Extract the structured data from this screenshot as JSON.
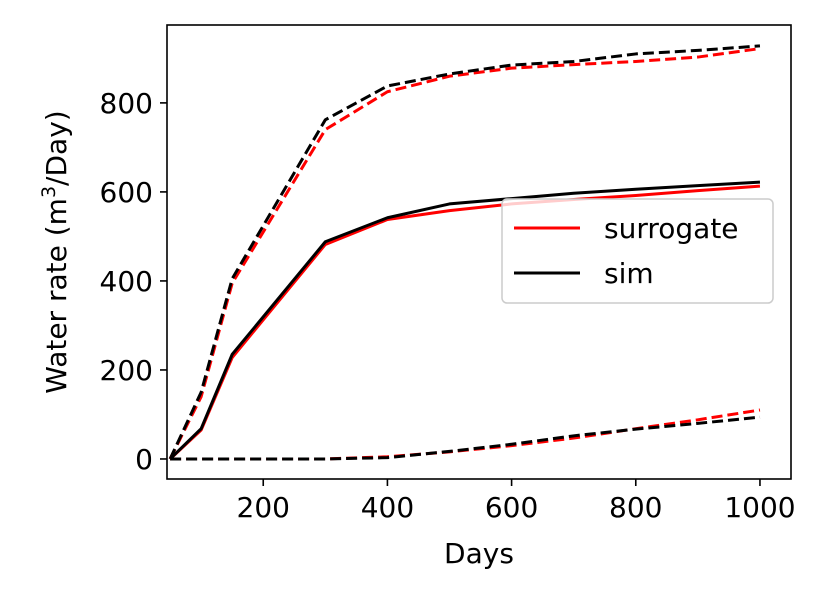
{
  "chart_data": {
    "type": "line",
    "title": "",
    "xlabel": "Days",
    "ylabel_parts": {
      "main": "Water rate (m",
      "sup": "3",
      "tail": "/Day)"
    },
    "xlim": [
      45,
      1050
    ],
    "ylim": [
      -45,
      975
    ],
    "xticks": [
      200,
      400,
      600,
      800,
      1000
    ],
    "xtick_labels": [
      "200",
      "400",
      "600",
      "800",
      "1000"
    ],
    "yticks": [
      0,
      200,
      400,
      600,
      800
    ],
    "ytick_labels": [
      "0",
      "200",
      "400",
      "600",
      "800"
    ],
    "grid": false,
    "legend_position": "center-right",
    "legend": [
      {
        "label": "surrogate",
        "color": "#ff0000"
      },
      {
        "label": "sim",
        "color": "#000000"
      }
    ],
    "series": [
      {
        "name": "surrogate",
        "group": "upper",
        "color": "#ff0000",
        "style": "dashed",
        "x": [
          50,
          100,
          150,
          300,
          400,
          500,
          600,
          700,
          800,
          900,
          1000
        ],
        "y": [
          0,
          140,
          395,
          740,
          825,
          860,
          878,
          886,
          893,
          903,
          922
        ]
      },
      {
        "name": "sim",
        "group": "upper",
        "color": "#000000",
        "style": "dashed",
        "x": [
          50,
          100,
          150,
          300,
          400,
          500,
          600,
          700,
          800,
          900,
          1000
        ],
        "y": [
          0,
          150,
          405,
          762,
          838,
          865,
          885,
          893,
          910,
          918,
          928
        ]
      },
      {
        "name": "surrogate",
        "group": "middle",
        "color": "#ff0000",
        "style": "solid",
        "x": [
          50,
          100,
          150,
          300,
          400,
          500,
          600,
          700,
          800,
          900,
          1000
        ],
        "y": [
          0,
          65,
          228,
          482,
          538,
          558,
          573,
          583,
          592,
          603,
          613
        ]
      },
      {
        "name": "sim",
        "group": "middle",
        "color": "#000000",
        "style": "solid",
        "x": [
          50,
          100,
          150,
          300,
          400,
          500,
          600,
          700,
          800,
          900,
          1000
        ],
        "y": [
          0,
          68,
          235,
          488,
          542,
          573,
          585,
          597,
          606,
          614,
          622
        ]
      },
      {
        "name": "surrogate",
        "group": "lower",
        "color": "#ff0000",
        "style": "dashed",
        "x": [
          50,
          150,
          300,
          400,
          500,
          600,
          700,
          800,
          900,
          1000
        ],
        "y": [
          0,
          0,
          0,
          5,
          16,
          30,
          47,
          68,
          88,
          110
        ]
      },
      {
        "name": "sim",
        "group": "lower",
        "color": "#000000",
        "style": "dashed",
        "x": [
          50,
          150,
          300,
          400,
          500,
          600,
          700,
          800,
          900,
          1000
        ],
        "y": [
          0,
          0,
          0,
          3,
          17,
          33,
          52,
          67,
          80,
          94
        ]
      }
    ]
  }
}
